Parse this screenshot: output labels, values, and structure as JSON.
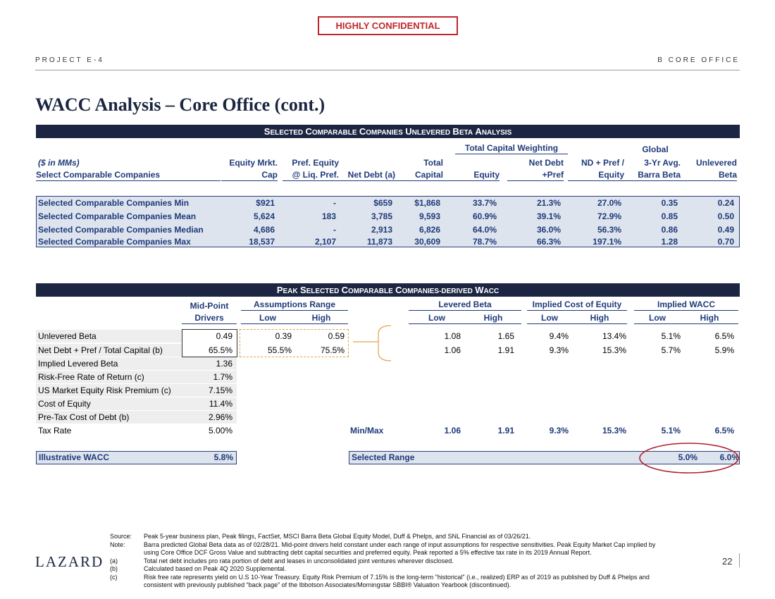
{
  "confidential": "HIGHLY CONFIDENTIAL",
  "header": {
    "project": "PROJECT E-4",
    "section": "B   CORE OFFICE"
  },
  "title": "WACC Analysis – Core Office (cont.)",
  "table1": {
    "band": "SELECTED COMPARABLE COMPANIES UNLEVERED BETA ANALYSIS",
    "group_tcw": "Total Capital Weighting",
    "global": "Global",
    "units": "($ in MMs)",
    "select_label": "Select Comparable Companies",
    "cols": [
      {
        "l1": "Equity Mrkt.",
        "l2": "Cap"
      },
      {
        "l1": "Pref. Equity",
        "l2": "@ Liq. Pref."
      },
      {
        "l1": "",
        "l2": "Net Debt (a)"
      },
      {
        "l1": "Total",
        "l2": "Capital"
      },
      {
        "l1": "",
        "l2": "Equity"
      },
      {
        "l1": "Net Debt",
        "l2": "+Pref"
      },
      {
        "l1": "ND + Pref /",
        "l2": "Equity"
      },
      {
        "l1": "3-Yr Avg.",
        "l2": "Barra Beta"
      },
      {
        "l1": "Unlevered",
        "l2": "Beta"
      }
    ],
    "rows": [
      {
        "label": "Selected Comparable Companies Min",
        "vals": [
          "$921",
          "-",
          "$659",
          "$1,868",
          "33.7%",
          "21.3%",
          "27.0%",
          "0.35",
          "0.24"
        ]
      },
      {
        "label": "Selected Comparable Companies Mean",
        "vals": [
          "5,624",
          "183",
          "3,785",
          "9,593",
          "60.9%",
          "39.1%",
          "72.9%",
          "0.85",
          "0.50"
        ]
      },
      {
        "label": "Selected Comparable Companies Median",
        "vals": [
          "4,686",
          "-",
          "2,913",
          "6,826",
          "64.0%",
          "36.0%",
          "56.3%",
          "0.86",
          "0.49"
        ]
      },
      {
        "label": "Selected Comparable Companies Max",
        "vals": [
          "18,537",
          "2,107",
          "11,873",
          "30,609",
          "78.7%",
          "66.3%",
          "197.1%",
          "1.28",
          "0.70"
        ]
      }
    ]
  },
  "table2": {
    "band": "PEAK SELECTED COMPARABLE COMPANIES-DERIVED WACC",
    "midpoint": "Mid-Point",
    "drivers": "Drivers",
    "groups": [
      "Assumptions Range",
      "Levered Beta",
      "Implied Cost of Equity",
      "Implied WACC"
    ],
    "low": "Low",
    "high": "High",
    "rows": [
      {
        "label": "Unlevered Beta",
        "mid": "0.49",
        "alow": "0.39",
        "ahigh": "0.59",
        "vals": [
          "1.08",
          "1.65",
          "9.4%",
          "13.4%",
          "5.1%",
          "6.5%"
        ]
      },
      {
        "label": "Net Debt + Pref / Total Capital  (b)",
        "mid": "65.5%",
        "alow": "55.5%",
        "ahigh": "75.5%",
        "vals": [
          "1.06",
          "1.91",
          "9.3%",
          "15.3%",
          "5.7%",
          "5.9%"
        ]
      },
      {
        "label": "Implied Levered Beta",
        "mid": "1.36"
      },
      {
        "label": "Risk-Free Rate of Return  (c)",
        "mid": "1.7%"
      },
      {
        "label": "US Market Equity Risk Premium  (c)",
        "mid": "7.15%"
      },
      {
        "label": "Cost of Equity",
        "mid": "11.4%"
      },
      {
        "label": "Pre-Tax Cost of Debt  (b)",
        "mid": "2.96%"
      },
      {
        "label": "Tax Rate",
        "mid": "5.00%"
      }
    ],
    "minmax_label": "Min/Max",
    "minmax": [
      "1.06",
      "1.91",
      "9.3%",
      "15.3%",
      "5.1%",
      "6.5%"
    ],
    "illustrative_label": "Illustrative WACC",
    "illustrative_value": "5.8%",
    "selected_label": "Selected Range",
    "selected_low": "5.0%",
    "selected_high": "6.0%"
  },
  "footnotes": [
    {
      "tag": "Source:",
      "text": "Peak 5-year business plan, Peak filings, FactSet, MSCI Barra Beta Global Equity Model, Duff & Phelps, and SNL Financial as of 03/26/21."
    },
    {
      "tag": "Note:",
      "text": "Barra predicted Global Beta data as of 02/28/21. Mid-point drivers held constant under each range of input assumptions for respective sensitivities. Peak Equity Market Cap implied by"
    },
    {
      "tag": "",
      "text": "using Core Office DCF Gross Value and subtracting debt capital securities and preferred equity. Peak reported a 5% effective tax rate in its 2019 Annual Report."
    },
    {
      "tag": "(a)",
      "text": "Total net debt includes pro rata portion of debt and leases in unconsolidated joint ventures wherever disclosed."
    },
    {
      "tag": "(b)",
      "text": "Calculated based on Peak 4Q 2020 Supplemental."
    },
    {
      "tag": "(c)",
      "text": "Risk free rate represents yield on U.S 10-Year Treasury. Equity Risk Premium of 7.15% is the long-term \"historical\" (i.e., realized) ERP as of 2019 as published by Duff & Phelps and"
    },
    {
      "tag": "",
      "text": "consistent with previously published “back page” of the Ibbotson Associates/Morningstar SBBI® Valuation Yearbook (discontinued)."
    }
  ],
  "logo": "LAZARD",
  "page_number": "22",
  "colors": {
    "navy": "#1c2642",
    "accent_blue": "#1f3a7a",
    "confidential_red": "#c0272d",
    "highlight_circle": "#b0202a"
  }
}
